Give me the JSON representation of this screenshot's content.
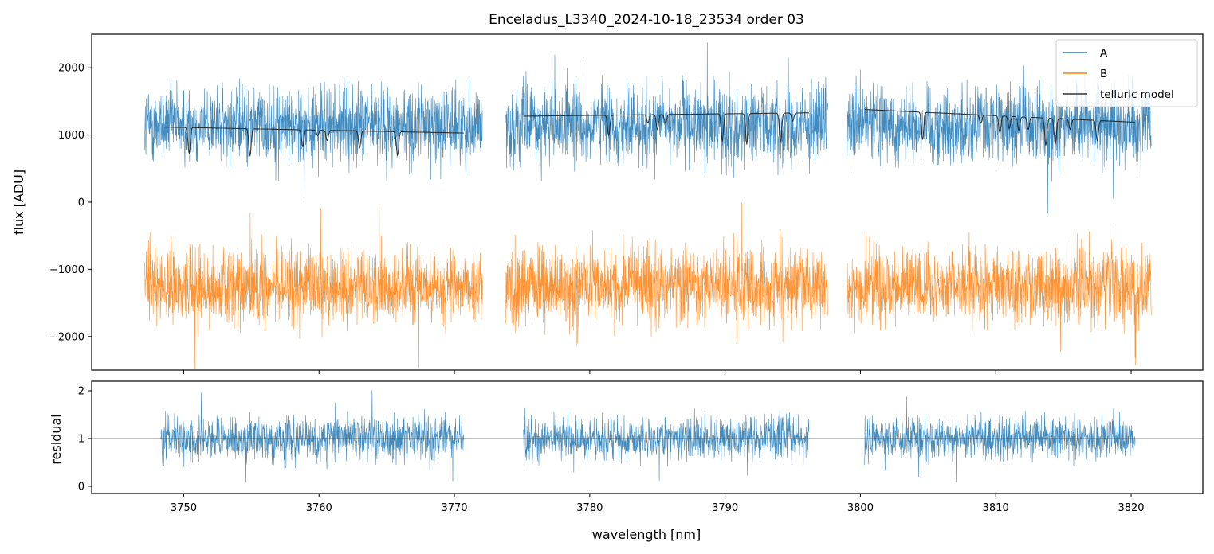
{
  "chart_data": [
    {
      "type": "line",
      "title": "Enceladus_L3340_2024-10-18_23534  order 03",
      "ylabel": "flux [ADU]",
      "xlabel": "",
      "xlim": [
        3743.2,
        3825.3
      ],
      "ylim": [
        -2500,
        2500
      ],
      "yticks": [
        -2000,
        -1000,
        0,
        1000,
        2000
      ],
      "ytick_labels": [
        "−2000",
        "−1000",
        "0",
        "1000",
        "2000"
      ],
      "xticks": [
        3750,
        3760,
        3770,
        3780,
        3790,
        3800,
        3810,
        3820
      ],
      "legend_position": "top-right",
      "grid": false,
      "segments": [
        {
          "x_start": 3747.1,
          "x_end": 3772.1
        },
        {
          "x_start": 3773.8,
          "x_end": 3797.6
        },
        {
          "x_start": 3799.0,
          "x_end": 3821.5
        }
      ],
      "series": [
        {
          "name": "A",
          "color": "#1f77b4",
          "style": "noisy spectrum",
          "mean": 1150,
          "spread": 400
        },
        {
          "name": "B",
          "color": "#ff7f0e",
          "style": "noisy spectrum",
          "mean": -1250,
          "spread": 400
        },
        {
          "name": "telluric model",
          "color": "#1a1a1a",
          "pieces": [
            {
              "x_start": 3748.3,
              "x_end": 3770.7,
              "level_start": 1120,
              "level_end": 1030
            },
            {
              "x_start": 3775.1,
              "x_end": 3796.2,
              "level_start": 1280,
              "level_end": 1330
            },
            {
              "x_start": 3800.3,
              "x_end": 3820.3,
              "level_start": 1380,
              "level_end": 1190
            }
          ],
          "absorption_lines": [
            {
              "x": 3750.4,
              "depth": 380
            },
            {
              "x": 3754.9,
              "depth": 400
            },
            {
              "x": 3758.8,
              "depth": 250
            },
            {
              "x": 3759.9,
              "depth": 80
            },
            {
              "x": 3760.6,
              "depth": 150
            },
            {
              "x": 3763.0,
              "depth": 250
            },
            {
              "x": 3765.8,
              "depth": 350
            },
            {
              "x": 3781.4,
              "depth": 300
            },
            {
              "x": 3784.3,
              "depth": 120
            },
            {
              "x": 3785.0,
              "depth": 220
            },
            {
              "x": 3785.6,
              "depth": 130
            },
            {
              "x": 3789.8,
              "depth": 400
            },
            {
              "x": 3791.6,
              "depth": 450
            },
            {
              "x": 3794.1,
              "depth": 420
            },
            {
              "x": 3795.0,
              "depth": 120
            },
            {
              "x": 3804.6,
              "depth": 400
            },
            {
              "x": 3808.9,
              "depth": 120
            },
            {
              "x": 3810.3,
              "depth": 250
            },
            {
              "x": 3811.0,
              "depth": 180
            },
            {
              "x": 3811.7,
              "depth": 200
            },
            {
              "x": 3812.4,
              "depth": 180
            },
            {
              "x": 3813.7,
              "depth": 400
            },
            {
              "x": 3814.4,
              "depth": 380
            },
            {
              "x": 3815.5,
              "depth": 150
            },
            {
              "x": 3817.5,
              "depth": 300
            }
          ]
        }
      ]
    },
    {
      "type": "line",
      "title": "",
      "ylabel": "residual",
      "xlabel": "wavelength [nm]",
      "xlim": [
        3743.2,
        3825.3
      ],
      "ylim": [
        -0.15,
        2.2
      ],
      "yticks": [
        0,
        1,
        2
      ],
      "ytick_labels": [
        "0",
        "1",
        "2"
      ],
      "xticks": [
        3750,
        3760,
        3770,
        3780,
        3790,
        3800,
        3810,
        3820
      ],
      "xtick_labels": [
        "3750",
        "3760",
        "3770",
        "3780",
        "3790",
        "3800",
        "3810",
        "3820"
      ],
      "reference_line": 1,
      "segments": [
        {
          "x_start": 3748.3,
          "x_end": 3770.7
        },
        {
          "x_start": 3775.1,
          "x_end": 3796.2
        },
        {
          "x_start": 3800.3,
          "x_end": 3820.3
        }
      ],
      "series": [
        {
          "name": "",
          "color": "#1f77b4",
          "style": "noisy residual",
          "mean": 1.0,
          "spread": 0.32
        }
      ]
    }
  ]
}
